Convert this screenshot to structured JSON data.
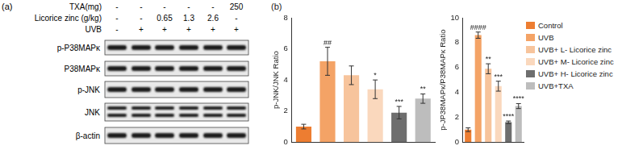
{
  "panel_a": {
    "label": "(a)",
    "header_rows": [
      {
        "label": "TXA(mg)",
        "values": [
          "-",
          "-",
          "-",
          "-",
          "-",
          "250"
        ]
      },
      {
        "label": "Licorice zinc (g/kg)",
        "values": [
          "-",
          "-",
          "0.65",
          "1.3",
          "2.6",
          "-"
        ]
      },
      {
        "label": "UVB",
        "values": [
          "-",
          "+",
          "+",
          "+",
          "+",
          "+"
        ]
      }
    ],
    "bands": [
      "p-P38MAPκ",
      "P38MAPκ",
      "p-JNK",
      "JNK",
      "β-actin"
    ]
  },
  "panel_b_label": "(b)",
  "chart_data": [
    {
      "type": "bar",
      "y_label": "p-JNK/JNK Ratio",
      "categories": [
        "Control",
        "UVB",
        "UVB+ L- Licorice zinc",
        "UVB+ M- Licorice zinc",
        "UVB+ H- Licorice zinc",
        "UVB+TXA"
      ],
      "values": [
        1.0,
        5.2,
        4.3,
        3.4,
        1.9,
        2.8
      ],
      "errors": [
        0.15,
        0.9,
        0.6,
        0.6,
        0.4,
        0.3
      ],
      "annotations": [
        null,
        "##",
        null,
        "*",
        "***",
        "**"
      ],
      "colors": [
        "#ed7d31",
        "#f4a366",
        "#f7c49c",
        "#fad8bd",
        "#6e6e6e",
        "#bdbdbd"
      ],
      "ylim": [
        0,
        8
      ],
      "yticks": [
        0,
        2,
        4,
        6,
        8
      ],
      "grid": false,
      "tick_labels": "y"
    },
    {
      "type": "bar",
      "y_label": "p-JP38MAPκ/P38MAPκ Ratio",
      "categories": [
        "Control",
        "UVB",
        "UVB+ L- Licorice zinc",
        "UVB+ M- Licorice zinc",
        "UVB+ H- Licorice zinc",
        "UVB+TXA"
      ],
      "values": [
        1.0,
        8.6,
        5.9,
        4.5,
        1.6,
        2.9
      ],
      "errors": [
        0.15,
        0.25,
        0.4,
        0.4,
        0.1,
        0.2
      ],
      "annotations": [
        null,
        "####",
        "**",
        "***",
        "****",
        "****"
      ],
      "colors": [
        "#ed7d31",
        "#f4a366",
        "#f7c49c",
        "#fad8bd",
        "#6e6e6e",
        "#bdbdbd"
      ],
      "ylim": [
        0,
        10
      ],
      "yticks": [
        0,
        2,
        4,
        6,
        8,
        10
      ],
      "grid": false,
      "tick_labels": "y",
      "legend": "right"
    }
  ]
}
